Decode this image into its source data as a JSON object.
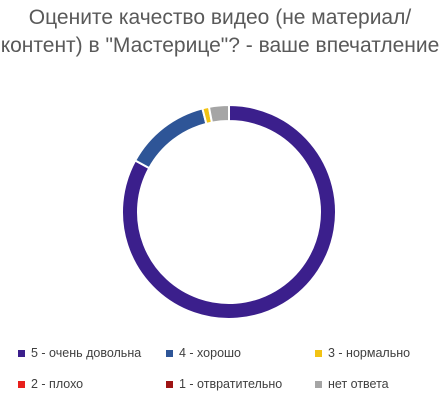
{
  "chart_data": {
    "type": "pie",
    "variant": "donut",
    "title": "Оцените качество видео (не материал/контент) в \"Мастерице\"? - ваше впечатление",
    "categories": [
      "5 - очень довольна",
      "4 - хорошо",
      "3 - нормально",
      "2 - плохо",
      "1 - отвратительно",
      "нет ответа"
    ],
    "values": [
      83,
      13,
      1,
      0,
      0,
      3
    ],
    "colors": [
      "#3b1f8c",
      "#2e5597",
      "#f2c314",
      "#e8201c",
      "#9e1414",
      "#a5a5a5"
    ],
    "legend_position": "bottom"
  }
}
